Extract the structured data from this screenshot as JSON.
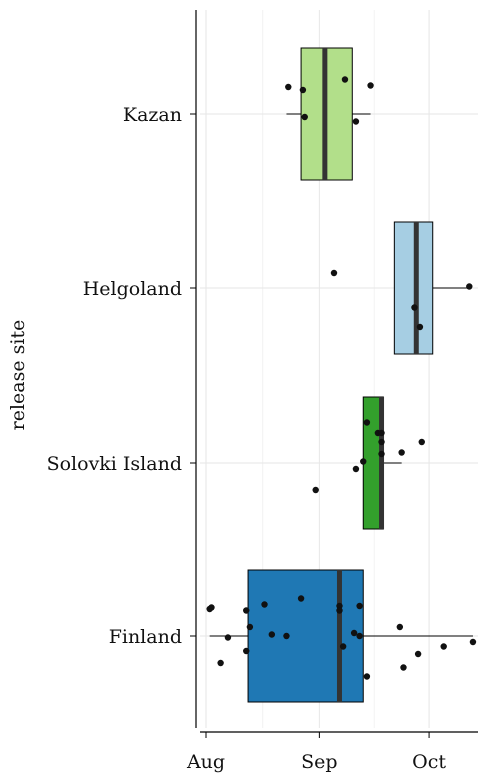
{
  "chart_data": {
    "type": "box",
    "orientation": "horizontal",
    "ylabel": "release site",
    "xlabel": "",
    "x_ticks": [
      {
        "label": "Aug",
        "day": 0
      },
      {
        "label": "Sep",
        "day": 31
      },
      {
        "label": "Oct",
        "day": 61
      }
    ],
    "xlim": [
      -1,
      73
    ],
    "grid": true,
    "legend": "none",
    "categories": [
      {
        "name": "Kazan",
        "color": "#b2df8a",
        "box": {
          "q1": 26,
          "median": 32.5,
          "q3": 40,
          "whisker_low": 22,
          "whisker_high": 45
        },
        "points": [
          {
            "day": 22.5,
            "jitter": 0.18
          },
          {
            "day": 26.5,
            "jitter": 0.16
          },
          {
            "day": 27,
            "jitter": -0.02
          },
          {
            "day": 38,
            "jitter": 0.23
          },
          {
            "day": 41,
            "jitter": -0.05
          },
          {
            "day": 45,
            "jitter": 0.19
          }
        ]
      },
      {
        "name": "Helgoland",
        "color": "#a6cee3",
        "box": {
          "q1": 51.5,
          "median": 57.5,
          "q3": 62,
          "whisker_low": 51.5,
          "whisker_high": 72
        },
        "points": [
          {
            "day": 35,
            "jitter": 0.1
          },
          {
            "day": 57,
            "jitter": -0.13
          },
          {
            "day": 58.5,
            "jitter": -0.26
          },
          {
            "day": 72,
            "jitter": 0.01
          }
        ]
      },
      {
        "name": "Solovki Island",
        "color": "#33a02c",
        "box": {
          "q1": 43,
          "median": 48,
          "q3": 48.5,
          "whisker_low": 43,
          "whisker_high": 53.5
        },
        "points": [
          {
            "day": 30,
            "jitter": -0.18
          },
          {
            "day": 41,
            "jitter": -0.04
          },
          {
            "day": 43,
            "jitter": 0.01
          },
          {
            "day": 44,
            "jitter": 0.27
          },
          {
            "day": 47,
            "jitter": 0.2
          },
          {
            "day": 48,
            "jitter": 0.14
          },
          {
            "day": 48,
            "jitter": 0.2
          },
          {
            "day": 48,
            "jitter": 0.06
          },
          {
            "day": 53.5,
            "jitter": 0.07
          },
          {
            "day": 59,
            "jitter": 0.14
          }
        ]
      },
      {
        "name": "Finland",
        "color": "#1f78b4",
        "box": {
          "q1": 11.5,
          "median": 36.5,
          "q3": 43,
          "whisker_low": 1,
          "whisker_high": 73
        },
        "points": [
          {
            "day": 1,
            "jitter": 0.18
          },
          {
            "day": 1.5,
            "jitter": 0.19
          },
          {
            "day": 4,
            "jitter": -0.18
          },
          {
            "day": 6,
            "jitter": -0.01
          },
          {
            "day": 11,
            "jitter": 0.17
          },
          {
            "day": 11,
            "jitter": -0.1
          },
          {
            "day": 12,
            "jitter": 0.06
          },
          {
            "day": 16,
            "jitter": 0.21
          },
          {
            "day": 18,
            "jitter": 0.01
          },
          {
            "day": 22,
            "jitter": 0.0
          },
          {
            "day": 26,
            "jitter": 0.25
          },
          {
            "day": 36.5,
            "jitter": 0.2
          },
          {
            "day": 36.5,
            "jitter": 0.17
          },
          {
            "day": 37.5,
            "jitter": -0.07
          },
          {
            "day": 40.5,
            "jitter": 0.02
          },
          {
            "day": 42,
            "jitter": 0.2
          },
          {
            "day": 42,
            "jitter": 0.0
          },
          {
            "day": 44,
            "jitter": -0.27
          },
          {
            "day": 53,
            "jitter": 0.06
          },
          {
            "day": 54,
            "jitter": -0.21
          },
          {
            "day": 58,
            "jitter": -0.12
          },
          {
            "day": 65,
            "jitter": -0.07
          },
          {
            "day": 73,
            "jitter": -0.04
          }
        ]
      }
    ]
  }
}
